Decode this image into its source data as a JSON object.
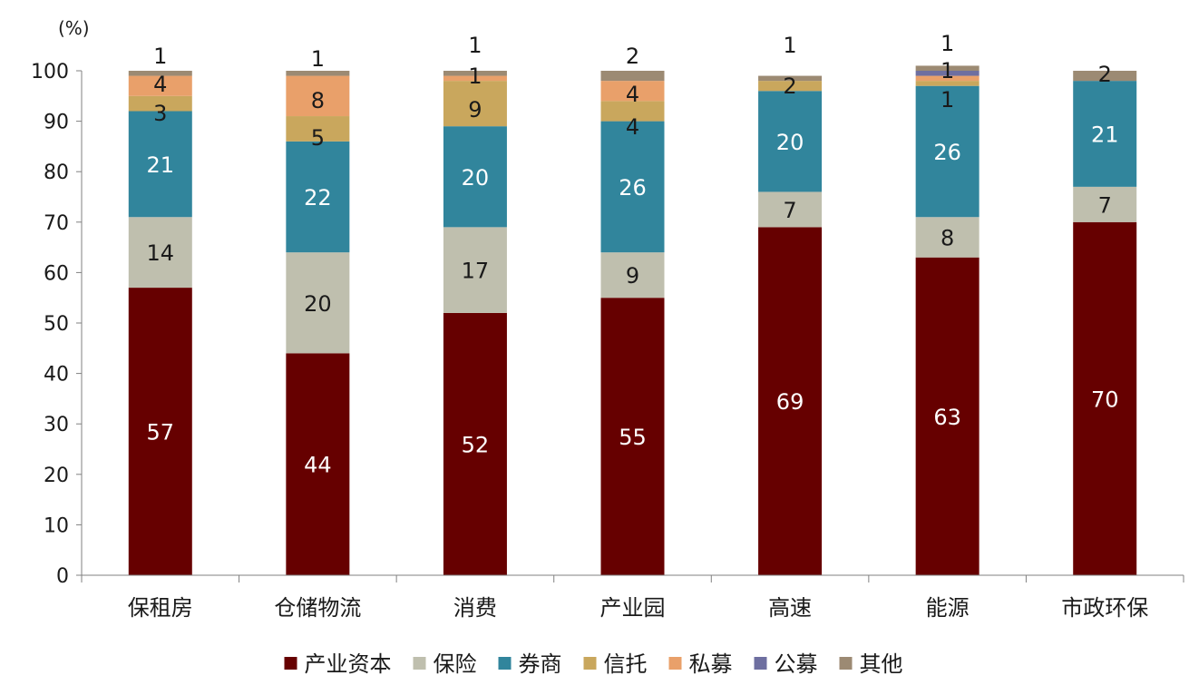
{
  "chart_data": {
    "type": "bar",
    "stacked": true,
    "y_unit_label": "(%)",
    "ylim": [
      0,
      100
    ],
    "yticks": [
      0,
      10,
      20,
      30,
      40,
      50,
      60,
      70,
      80,
      90,
      100
    ],
    "grid": false,
    "legend_position": "bottom",
    "categories": [
      "保租房",
      "仓储物流",
      "消费",
      "产业园",
      "高速",
      "能源",
      "市政环保"
    ],
    "series": [
      {
        "name": "产业资本",
        "color": "#660000",
        "label_color": "#ffffff",
        "values": [
          57,
          44,
          52,
          55,
          69,
          63,
          70
        ]
      },
      {
        "name": "保险",
        "color": "#bfbfae",
        "label_color": "#1a1a1a",
        "values": [
          14,
          20,
          17,
          9,
          7,
          8,
          7
        ]
      },
      {
        "name": "券商",
        "color": "#31859c",
        "label_color": "#ffffff",
        "values": [
          21,
          22,
          20,
          26,
          20,
          26,
          21
        ]
      },
      {
        "name": "信托",
        "color": "#c9a75d",
        "label_color": "#1a1a1a",
        "values": [
          3,
          5,
          9,
          4,
          2,
          1,
          0
        ]
      },
      {
        "name": "私募",
        "color": "#e9a06a",
        "label_color": "#1a1a1a",
        "values": [
          4,
          8,
          1,
          4,
          0,
          1,
          0
        ]
      },
      {
        "name": "公募",
        "color": "#6e6fa0",
        "label_color": "#1a1a1a",
        "values": [
          0,
          0,
          0,
          0,
          0,
          1,
          0
        ]
      },
      {
        "name": "其他",
        "color": "#9c8a73",
        "label_color": "#1a1a1a",
        "values": [
          1,
          1,
          1,
          2,
          1,
          1,
          2
        ]
      }
    ],
    "annotations": [
      {
        "category": 0,
        "labels": [
          {
            "text": "1"
          },
          {
            "text": "4"
          },
          {
            "text": "3"
          }
        ]
      },
      {
        "category": 1,
        "labels": [
          {
            "text": "1"
          },
          {
            "text": "8"
          },
          {
            "text": "5"
          }
        ]
      },
      {
        "category": 2,
        "labels": [
          {
            "text": "1"
          },
          {
            "text": "1"
          },
          {
            "text": "9"
          }
        ]
      },
      {
        "category": 3,
        "labels": [
          {
            "text": "2"
          },
          {
            "text": "4"
          },
          {
            "text": "4"
          }
        ]
      },
      {
        "category": 4,
        "labels": [
          {
            "text": "1"
          },
          {
            "text": "2"
          }
        ]
      },
      {
        "category": 5,
        "labels": [
          {
            "text": "1"
          },
          {
            "text": "1"
          },
          {
            "text": "1"
          }
        ]
      },
      {
        "category": 6,
        "labels": [
          {
            "text": "2"
          }
        ]
      }
    ]
  }
}
